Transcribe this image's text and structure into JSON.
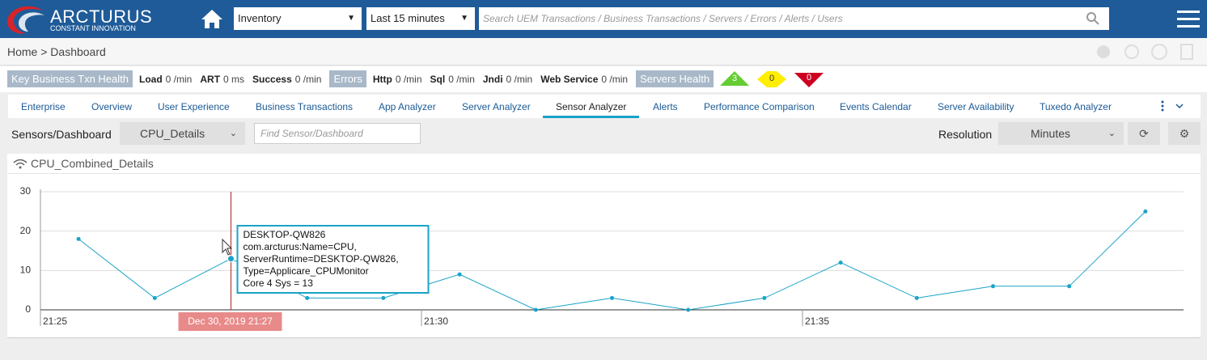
{
  "header": {
    "brand": "ARCTURUS",
    "tagline": "CONSTANT INNOVATION",
    "context": "Inventory",
    "range": "Last 15 minutes",
    "search": "Search UEM Transactions / Business Transactions / Servers / Errors / Alerts / Users"
  },
  "breadcrumb": "Home > Dashboard",
  "health": {
    "title": "Key Business Txn Health",
    "metrics": [
      {
        "label": "Load",
        "value": "0 /min"
      },
      {
        "label": "ART",
        "value": "0 ms"
      },
      {
        "label": "Success",
        "value": "0 /min"
      }
    ],
    "errors_title": "Errors",
    "errors": [
      {
        "label": "Http",
        "value": "0 /min"
      },
      {
        "label": "Sql",
        "value": "0 /min"
      },
      {
        "label": "Jndi",
        "value": "0 /min"
      },
      {
        "label": "Web Service",
        "value": "0 /min"
      }
    ],
    "servers_title": "Servers Health",
    "servers": [
      {
        "value": "3",
        "color": "#66cc33"
      },
      {
        "value": "0",
        "color": "#ffee00"
      },
      {
        "value": "0",
        "color": "#cc0022"
      }
    ]
  },
  "tabs": [
    "Enterprise",
    "Overview",
    "User Experience",
    "Business Transactions",
    "App Analyzer",
    "Server Analyzer",
    "Sensor Analyzer",
    "Alerts",
    "Performance Comparison",
    "Events Calendar",
    "Server Availability",
    "Tuxedo Analyzer"
  ],
  "toolbar": {
    "label": "Sensors/Dashboard",
    "selected": "CPU_Details",
    "find": "Find Sensor/Dashboard",
    "resolution_label": "Resolution",
    "resolution": "Minutes"
  },
  "chart_data": {
    "type": "line",
    "title": "CPU_Combined_Details",
    "x": [
      "21:25",
      null,
      null,
      null,
      null,
      "21:30",
      null,
      null,
      null,
      null,
      "21:35",
      null,
      null,
      null,
      null
    ],
    "values": [
      18,
      3,
      13,
      3,
      3,
      9,
      0,
      3,
      0,
      3,
      12,
      3,
      6,
      6,
      25
    ],
    "color": "#1aa3c8",
    "ylim": [
      0,
      30
    ],
    "yticks": [
      0,
      10,
      20,
      30
    ],
    "grid": true,
    "tooltip": {
      "lines": [
        "DESKTOP-QW826",
        "com.arcturus:Name=CPU,",
        "ServerRuntime=DESKTOP-QW826,",
        "Type=Applicare_CPUMonitor",
        "Core 4 Sys = 13"
      ],
      "date": "Dec 30, 2019 21:27"
    }
  }
}
